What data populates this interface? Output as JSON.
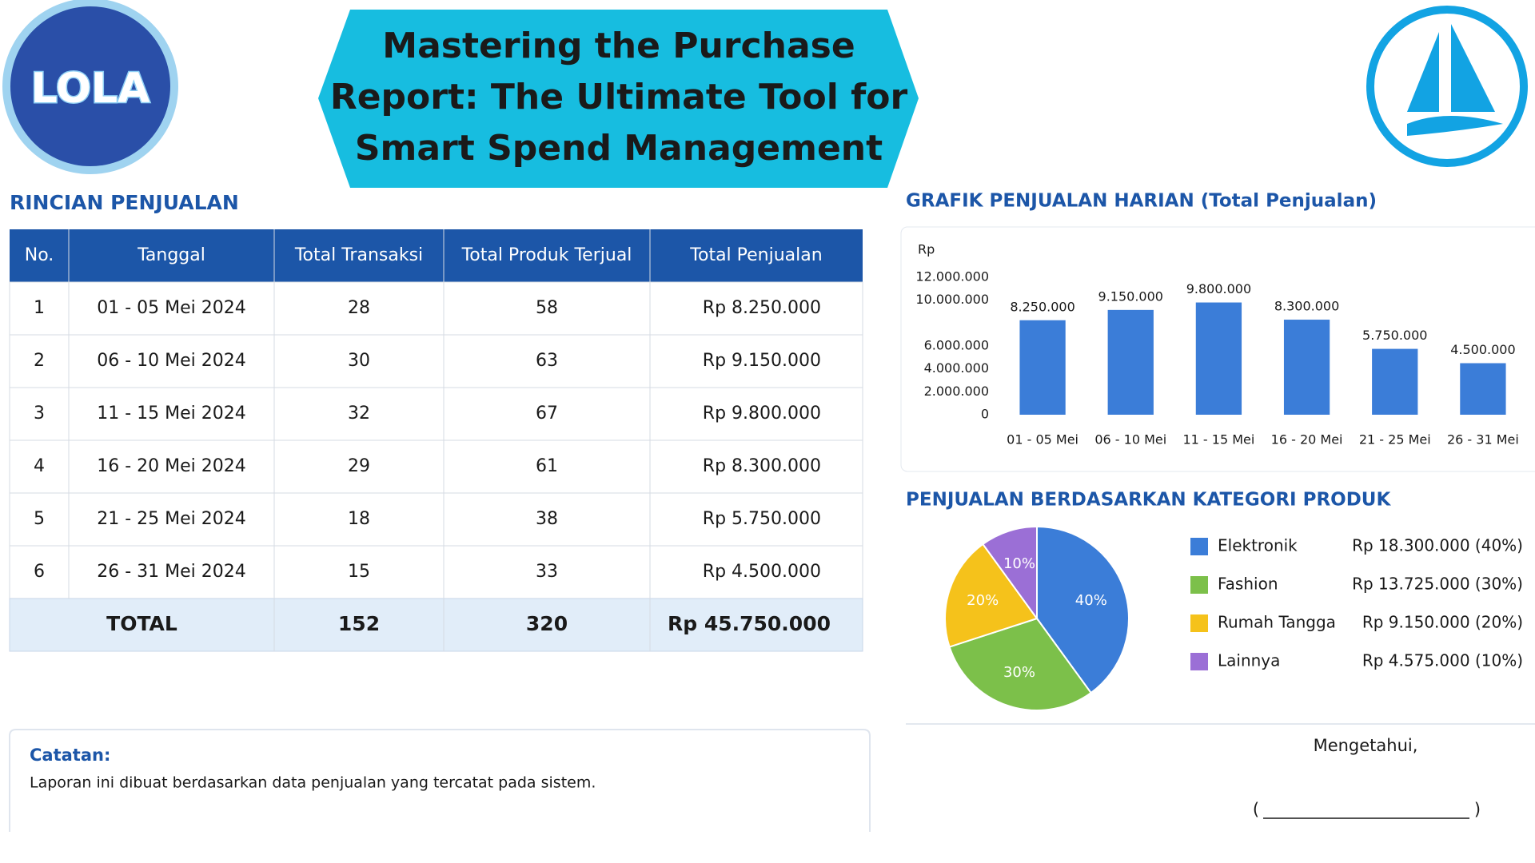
{
  "header": {
    "title_lines": [
      "Mastering the Purchase",
      "Report: The Ultimate Tool for",
      "Smart Spend Management"
    ],
    "logo_text": "LOLA"
  },
  "table": {
    "title": "RINCIAN PENJUALAN",
    "columns": [
      "No.",
      "Tanggal",
      "Total Transaksi",
      "Total Produk Terjual",
      "Total Penjualan"
    ],
    "rows": [
      [
        "1",
        "01 - 05 Mei 2024",
        "28",
        "58",
        "Rp 8.250.000"
      ],
      [
        "2",
        "06 - 10 Mei 2024",
        "30",
        "63",
        "Rp 9.150.000"
      ],
      [
        "3",
        "11 - 15 Mei 2024",
        "32",
        "67",
        "Rp 9.800.000"
      ],
      [
        "4",
        "16 - 20 Mei 2024",
        "29",
        "61",
        "Rp 8.300.000"
      ],
      [
        "5",
        "21 - 25 Mei 2024",
        "18",
        "38",
        "Rp 5.750.000"
      ],
      [
        "6",
        "26 - 31 Mei 2024",
        "15",
        "33",
        "Rp 4.500.000"
      ]
    ],
    "total": [
      "TOTAL",
      "152",
      "320",
      "Rp 45.750.000"
    ]
  },
  "bar_chart": {
    "type": "bar",
    "title": "GRAFIK PENJUALAN HARIAN (Total Penjualan)",
    "y_label": "Rp",
    "categories": [
      "01 - 05 Mei",
      "06 - 10 Mei",
      "11 - 15 Mei",
      "16 - 20 Mei",
      "21 - 25 Mei",
      "26 - 31 Mei"
    ],
    "values": [
      8250000,
      9150000,
      9800000,
      8300000,
      5750000,
      4500000
    ],
    "value_labels": [
      "8.250.000",
      "9.150.000",
      "9.800.000",
      "8.300.000",
      "5.750.000",
      "4.500.000"
    ],
    "color": "#3b7dd8",
    "ylim": [
      0,
      12000000
    ],
    "yticks": [
      0,
      {
        "value": 2000000,
        "label": "2.000.000"
      },
      {
        "value": 4000000,
        "label": "4.000.000"
      },
      {
        "value": 6000000,
        "label": "6.000.000"
      },
      {
        "value": 10000000,
        "label": "10.000.000"
      },
      {
        "value": 12000000,
        "label": "12.000.000"
      }
    ]
  },
  "pie_chart": {
    "type": "pie",
    "title": "PENJUALAN BERDASARKAN KATEGORI PRODUK",
    "categories": [
      "Elektronik",
      "Fashion",
      "Rumah Tangga",
      "Lainnya"
    ],
    "values": [
      40,
      30,
      20,
      10
    ],
    "value_labels": [
      "40%",
      "30%",
      "20%",
      "10%"
    ],
    "amount_labels": [
      "Rp 18.300.000 (40%)",
      "Rp 13.725.000 (30%)",
      "Rp 9.150.000 (20%)",
      "Rp 4.575.000 (10%)"
    ],
    "colors": [
      "#3b7dd8",
      "#7cc04a",
      "#f5c21b",
      "#9b6fd6"
    ]
  },
  "note": {
    "title": "Catatan:",
    "text": "Laporan ini dibuat berdasarkan data penjualan yang tercatat pada sistem."
  },
  "signature": {
    "label": "Mengetahui,",
    "open": "(",
    "close": ")"
  }
}
